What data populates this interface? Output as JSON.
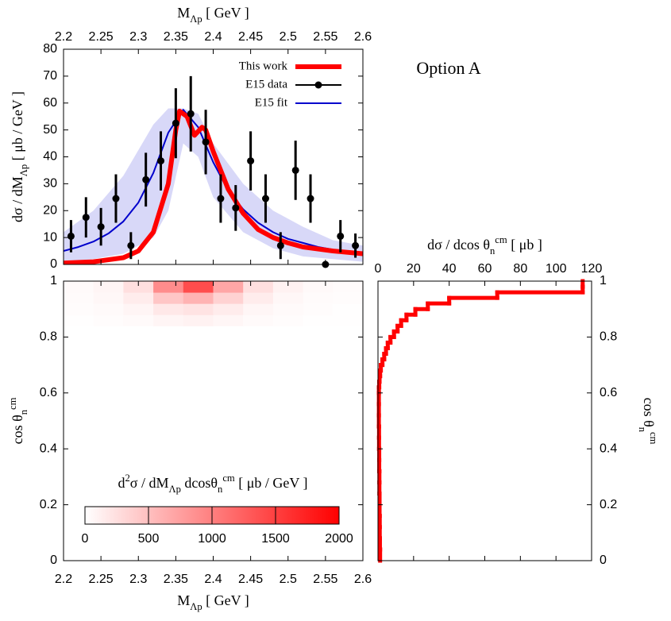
{
  "chart_data": [
    {
      "type": "line",
      "title": "Option A",
      "x_label": "M_{Λp}  [ GeV ]",
      "y_label": "dσ / dM_{Λp}  [ μb / GeV ]",
      "xlim": [
        2.2,
        2.6
      ],
      "xticks": [
        2.2,
        2.25,
        2.3,
        2.35,
        2.4,
        2.45,
        2.5,
        2.55,
        2.6
      ],
      "ylim": [
        0,
        80
      ],
      "yticks": [
        0,
        10,
        20,
        30,
        40,
        50,
        60,
        70,
        80
      ],
      "band": {
        "color": "#d4d4f7",
        "x": [
          2.2,
          2.24,
          2.28,
          2.32,
          2.34,
          2.36,
          2.38,
          2.4,
          2.44,
          2.48,
          2.52,
          2.56,
          2.6
        ],
        "lower": [
          1,
          2,
          4,
          10,
          20,
          45,
          40,
          25,
          12,
          6,
          3,
          2,
          1
        ],
        "upper": [
          12,
          20,
          33,
          52,
          58,
          58,
          56,
          45,
          30,
          20,
          14,
          9,
          7
        ]
      },
      "series": [
        {
          "name": "This work",
          "style": "thick-line",
          "color": "#ff0000",
          "x": [
            2.2,
            2.24,
            2.28,
            2.3,
            2.32,
            2.34,
            2.35,
            2.355,
            2.365,
            2.375,
            2.385,
            2.39,
            2.4,
            2.42,
            2.44,
            2.46,
            2.48,
            2.5,
            2.52,
            2.56,
            2.6
          ],
          "values": [
            0.5,
            1,
            2.5,
            5,
            12,
            30,
            50,
            57,
            55,
            48,
            51,
            50,
            42,
            28,
            19,
            13,
            10,
            8,
            6.5,
            5,
            4
          ]
        },
        {
          "name": "E15 data",
          "style": "errorbar",
          "color": "#000000",
          "x": [
            2.21,
            2.23,
            2.25,
            2.27,
            2.29,
            2.31,
            2.33,
            2.35,
            2.37,
            2.39,
            2.41,
            2.43,
            2.45,
            2.47,
            2.49,
            2.51,
            2.53,
            2.55,
            2.57,
            2.59
          ],
          "values": [
            10.5,
            17.5,
            14,
            24.5,
            7,
            31.5,
            38.5,
            52.5,
            56,
            45.5,
            24.5,
            21,
            38.5,
            24.5,
            7,
            35,
            24.5,
            0,
            10.5,
            7
          ],
          "errors": [
            6,
            7.5,
            7,
            9,
            5,
            10,
            11,
            13,
            14,
            12,
            9,
            8.5,
            11,
            9,
            5,
            11,
            9,
            0,
            6,
            4.5
          ]
        },
        {
          "name": "E15 fit",
          "style": "line",
          "color": "#0000cc",
          "x": [
            2.2,
            2.22,
            2.24,
            2.26,
            2.28,
            2.3,
            2.32,
            2.34,
            2.36,
            2.38,
            2.4,
            2.42,
            2.44,
            2.46,
            2.48,
            2.5,
            2.52,
            2.54,
            2.56,
            2.58,
            2.6
          ],
          "values": [
            5,
            6.5,
            8.5,
            11.5,
            16,
            23,
            34,
            49,
            57.5,
            51,
            38,
            27.5,
            20.5,
            15.5,
            12,
            9.5,
            8,
            6.5,
            5.5,
            4.5,
            4
          ]
        }
      ]
    },
    {
      "type": "heatmap",
      "x_label": "M_{Λp}  [ GeV ]",
      "y_label": "cos θ_{n}^{cm}",
      "xlim": [
        2.2,
        2.6
      ],
      "xticks": [
        2.2,
        2.25,
        2.3,
        2.35,
        2.4,
        2.45,
        2.5,
        2.55,
        2.6
      ],
      "ylim": [
        0,
        1
      ],
      "yticks": [
        0,
        0.2,
        0.4,
        0.6,
        0.8,
        1
      ],
      "x_bins": [
        2.2,
        2.24,
        2.28,
        2.32,
        2.36,
        2.4,
        2.44,
        2.48,
        2.52,
        2.56,
        2.6
      ],
      "y_bins": [
        0.84,
        0.88,
        0.92,
        0.96,
        1
      ],
      "z": [
        [
          10,
          20,
          40,
          80,
          100,
          70,
          40,
          20,
          10,
          5
        ],
        [
          20,
          40,
          80,
          180,
          220,
          150,
          70,
          40,
          20,
          10
        ],
        [
          30,
          60,
          150,
          450,
          600,
          350,
          150,
          60,
          30,
          20
        ],
        [
          40,
          80,
          250,
          900,
          1400,
          700,
          250,
          100,
          50,
          30
        ]
      ],
      "colorbar": {
        "label": "d^{2}σ / dM_{Λp} dcosθ_{n}^{cm}  [ μb / GeV ]",
        "zlim": [
          0,
          2000
        ],
        "ticks": [
          0,
          500,
          1000,
          1500,
          2000
        ],
        "colors": [
          "#ffffff",
          "#ff0000"
        ]
      }
    },
    {
      "type": "histogram",
      "orientation": "horizontal",
      "x_label": "dσ / dcos θ_{n}^{cm}  [ μb ]",
      "y_label": "cos θ_{n}^{cm}",
      "xlim": [
        0,
        120
      ],
      "xticks": [
        0,
        20,
        40,
        60,
        80,
        100,
        120
      ],
      "ylim": [
        0,
        1
      ],
      "yticks": [
        0,
        0.2,
        0.4,
        0.6,
        0.8,
        1
      ],
      "color": "#ff0000",
      "bins": [
        0,
        0.04,
        0.08,
        0.12,
        0.16,
        0.2,
        0.24,
        0.28,
        0.32,
        0.36,
        0.4,
        0.44,
        0.48,
        0.52,
        0.56,
        0.6,
        0.62,
        0.64,
        0.66,
        0.68,
        0.7,
        0.72,
        0.74,
        0.76,
        0.78,
        0.8,
        0.82,
        0.84,
        0.86,
        0.88,
        0.9,
        0.92,
        0.94,
        0.96,
        0.98,
        1
      ],
      "values": [
        1.2,
        1.1,
        1,
        1,
        0.9,
        0.9,
        0.8,
        0.8,
        0.7,
        0.7,
        0.6,
        0.6,
        0.5,
        0.5,
        0.5,
        0.5,
        0.7,
        0.9,
        1.2,
        1.6,
        2.5,
        3.5,
        4.5,
        5.5,
        7,
        9,
        11,
        13,
        16,
        21,
        28,
        40,
        67,
        115,
        115
      ]
    }
  ]
}
